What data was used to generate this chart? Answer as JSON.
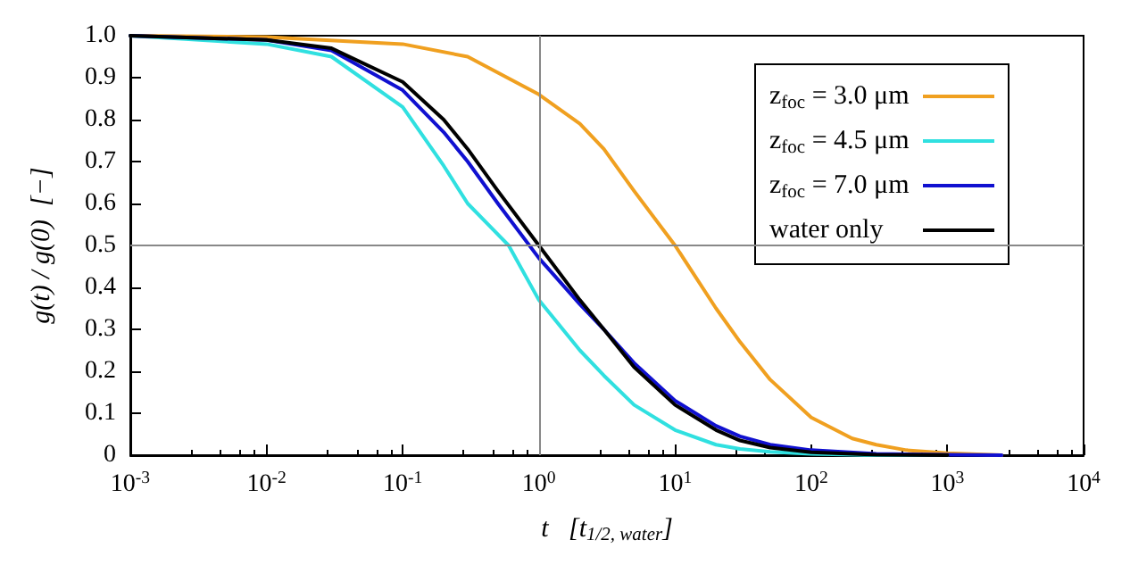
{
  "chart_data": {
    "type": "line",
    "xlabel": "t   [t$_{1/2, water}$]",
    "ylabel": "g(t) / g(0)  [−]",
    "log": "x",
    "xlim": [
      0.001,
      10000
    ],
    "ylim": [
      0,
      1
    ],
    "xticks": [
      {
        "value": 0.001,
        "label": "10$^{-3}$"
      },
      {
        "value": 0.01,
        "label": "10$^{-2}$"
      },
      {
        "value": 0.1,
        "label": "10$^{-1}$"
      },
      {
        "value": 1,
        "label": "10$^{0}$"
      },
      {
        "value": 10,
        "label": "10$^{1}$"
      },
      {
        "value": 100,
        "label": "10$^{2}$"
      },
      {
        "value": 1000,
        "label": "10$^{3}$"
      },
      {
        "value": 10000,
        "label": "10$^{4}$"
      }
    ],
    "yticks": [
      0,
      0.1,
      0.2,
      0.3,
      0.4,
      0.5,
      0.6,
      0.7,
      0.8,
      0.9,
      {
        "value": 1,
        "label": "1.0"
      }
    ],
    "grid": false,
    "legend": "top right",
    "marker": "none",
    "line_style": "solid",
    "ref_lines": [
      {
        "axis": "x",
        "value": 1,
        "color": "#888888"
      },
      {
        "axis": "y",
        "value": 0.5,
        "color": "#888888"
      }
    ],
    "series": [
      {
        "name": "z$_{foc}$ = 3.0 μm",
        "color": "#f0a020",
        "x": [
          0.001,
          0.01,
          0.1,
          0.3,
          1,
          2,
          3,
          5,
          10,
          20,
          30,
          50,
          100,
          200,
          300,
          500,
          1000,
          2500
        ],
        "values": [
          1,
          0.997,
          0.98,
          0.95,
          0.86,
          0.79,
          0.73,
          0.63,
          0.5,
          0.35,
          0.27,
          0.18,
          0.09,
          0.04,
          0.025,
          0.012,
          0.005,
          0
        ]
      },
      {
        "name": "z$_{foc}$ = 4.5 μm",
        "color": "#30e0e0",
        "x": [
          0.001,
          0.01,
          0.03,
          0.1,
          0.2,
          0.3,
          0.6,
          1,
          2,
          3,
          5,
          10,
          20,
          30,
          50,
          100,
          300,
          1000
        ],
        "values": [
          1,
          0.98,
          0.95,
          0.83,
          0.69,
          0.6,
          0.5,
          0.37,
          0.25,
          0.19,
          0.12,
          0.06,
          0.025,
          0.015,
          0.008,
          0.003,
          0,
          0
        ]
      },
      {
        "name": "z$_{foc}$ = 7.0 μm",
        "color": "#1010d0",
        "x": [
          0.001,
          0.01,
          0.03,
          0.1,
          0.2,
          0.3,
          0.5,
          1,
          2,
          3,
          5,
          10,
          20,
          30,
          50,
          100,
          300,
          1000,
          2500
        ],
        "values": [
          1,
          0.99,
          0.965,
          0.87,
          0.77,
          0.7,
          0.6,
          0.47,
          0.36,
          0.3,
          0.22,
          0.13,
          0.07,
          0.045,
          0.025,
          0.012,
          0.003,
          0.001,
          0
        ]
      },
      {
        "name": "water only",
        "color": "#000000",
        "x": [
          0.001,
          0.01,
          0.03,
          0.1,
          0.2,
          0.3,
          0.5,
          1,
          2,
          3,
          5,
          10,
          20,
          30,
          50,
          100,
          300,
          1000
        ],
        "values": [
          1,
          0.99,
          0.97,
          0.89,
          0.8,
          0.73,
          0.63,
          0.5,
          0.37,
          0.3,
          0.21,
          0.12,
          0.06,
          0.035,
          0.018,
          0.007,
          0.001,
          0
        ]
      }
    ]
  }
}
